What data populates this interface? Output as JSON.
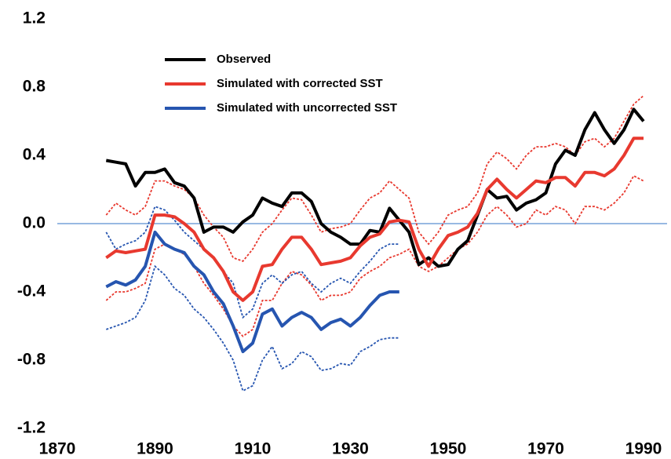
{
  "chart_data": {
    "type": "line",
    "x": [
      1880,
      1882,
      1884,
      1886,
      1888,
      1890,
      1892,
      1894,
      1896,
      1898,
      1900,
      1902,
      1904,
      1906,
      1908,
      1910,
      1912,
      1914,
      1916,
      1918,
      1920,
      1922,
      1924,
      1926,
      1928,
      1930,
      1932,
      1934,
      1936,
      1938,
      1940,
      1942,
      1944,
      1946,
      1948,
      1950,
      1952,
      1954,
      1956,
      1958,
      1960,
      1962,
      1964,
      1966,
      1968,
      1970,
      1972,
      1974,
      1976,
      1978,
      1980,
      1982,
      1984,
      1986,
      1988,
      1990
    ],
    "series": [
      {
        "name": "Observed",
        "color": "#000000",
        "values": [
          0.37,
          0.36,
          0.35,
          0.22,
          0.3,
          0.3,
          0.32,
          0.24,
          0.22,
          0.15,
          -0.05,
          -0.02,
          -0.02,
          -0.05,
          0.01,
          0.05,
          0.15,
          0.12,
          0.1,
          0.18,
          0.18,
          0.13,
          0.0,
          -0.05,
          -0.08,
          -0.12,
          -0.12,
          -0.04,
          -0.05,
          0.09,
          0.02,
          -0.05,
          -0.24,
          -0.2,
          -0.25,
          -0.24,
          -0.15,
          -0.1,
          0.05,
          0.2,
          0.15,
          0.16,
          0.08,
          0.12,
          0.14,
          0.18,
          0.35,
          0.43,
          0.4,
          0.55,
          0.65,
          0.55,
          0.47,
          0.55,
          0.67,
          0.6
        ]
      },
      {
        "name": "Simulated with corrected SST",
        "color": "#e8392f",
        "values": [
          -0.2,
          -0.16,
          -0.17,
          -0.16,
          -0.15,
          0.05,
          0.05,
          0.04,
          0.0,
          -0.05,
          -0.15,
          -0.2,
          -0.28,
          -0.4,
          -0.45,
          -0.4,
          -0.25,
          -0.24,
          -0.15,
          -0.08,
          -0.08,
          -0.15,
          -0.24,
          -0.23,
          -0.22,
          -0.2,
          -0.13,
          -0.08,
          -0.06,
          0.01,
          0.02,
          0.01,
          -0.15,
          -0.25,
          -0.15,
          -0.07,
          -0.05,
          -0.02,
          0.06,
          0.2,
          0.26,
          0.2,
          0.15,
          0.2,
          0.25,
          0.24,
          0.27,
          0.27,
          0.22,
          0.3,
          0.3,
          0.28,
          0.32,
          0.4,
          0.5,
          0.5
        ],
        "upper": [
          0.05,
          0.12,
          0.08,
          0.05,
          0.1,
          0.25,
          0.25,
          0.22,
          0.2,
          0.15,
          0.05,
          -0.02,
          -0.08,
          -0.2,
          -0.22,
          -0.15,
          -0.05,
          0.0,
          0.08,
          0.15,
          0.14,
          0.05,
          -0.05,
          -0.03,
          -0.02,
          0.0,
          0.08,
          0.15,
          0.18,
          0.25,
          0.2,
          0.15,
          -0.05,
          -0.12,
          -0.05,
          0.05,
          0.08,
          0.1,
          0.18,
          0.35,
          0.42,
          0.38,
          0.32,
          0.4,
          0.45,
          0.45,
          0.47,
          0.45,
          0.4,
          0.48,
          0.5,
          0.45,
          0.5,
          0.6,
          0.7,
          0.75
        ],
        "lower": [
          -0.45,
          -0.4,
          -0.4,
          -0.38,
          -0.35,
          -0.15,
          -0.12,
          -0.15,
          -0.18,
          -0.25,
          -0.35,
          -0.42,
          -0.5,
          -0.6,
          -0.66,
          -0.62,
          -0.45,
          -0.45,
          -0.35,
          -0.28,
          -0.3,
          -0.36,
          -0.45,
          -0.42,
          -0.42,
          -0.4,
          -0.32,
          -0.28,
          -0.25,
          -0.2,
          -0.18,
          -0.15,
          -0.25,
          -0.28,
          -0.25,
          -0.2,
          -0.15,
          -0.12,
          -0.05,
          0.05,
          0.1,
          0.05,
          -0.02,
          0.0,
          0.08,
          0.05,
          0.1,
          0.08,
          0.0,
          0.1,
          0.1,
          0.08,
          0.12,
          0.18,
          0.28,
          0.25
        ]
      },
      {
        "name": "Simulated with uncorrected SST",
        "color": "#2655b0",
        "values": [
          -0.37,
          -0.34,
          -0.36,
          -0.33,
          -0.25,
          -0.05,
          -0.12,
          -0.15,
          -0.17,
          -0.25,
          -0.3,
          -0.4,
          -0.47,
          -0.6,
          -0.75,
          -0.7,
          -0.53,
          -0.5,
          -0.6,
          -0.55,
          -0.52,
          -0.55,
          -0.62,
          -0.58,
          -0.56,
          -0.6,
          -0.55,
          -0.48,
          -0.42,
          -0.4,
          -0.4,
          null,
          null,
          null,
          null,
          null,
          null,
          null,
          null,
          null,
          null,
          null,
          null,
          null,
          null,
          null,
          null,
          null,
          null,
          null,
          null,
          null,
          null,
          null,
          null,
          null
        ],
        "upper": [
          -0.05,
          -0.15,
          -0.12,
          -0.1,
          -0.05,
          0.1,
          0.08,
          0.02,
          -0.05,
          -0.1,
          -0.15,
          -0.2,
          -0.28,
          -0.35,
          -0.55,
          -0.5,
          -0.35,
          -0.3,
          -0.35,
          -0.3,
          -0.28,
          -0.35,
          -0.4,
          -0.35,
          -0.32,
          -0.35,
          -0.28,
          -0.22,
          -0.15,
          -0.12,
          -0.12,
          null,
          null,
          null,
          null,
          null,
          null,
          null,
          null,
          null,
          null,
          null,
          null,
          null,
          null,
          null,
          null,
          null,
          null,
          null,
          null,
          null,
          null,
          null,
          null,
          null
        ],
        "lower": [
          -0.62,
          -0.6,
          -0.58,
          -0.55,
          -0.45,
          -0.25,
          -0.3,
          -0.38,
          -0.42,
          -0.5,
          -0.55,
          -0.62,
          -0.7,
          -0.8,
          -0.98,
          -0.95,
          -0.8,
          -0.72,
          -0.85,
          -0.82,
          -0.75,
          -0.78,
          -0.86,
          -0.85,
          -0.82,
          -0.83,
          -0.75,
          -0.72,
          -0.68,
          -0.67,
          -0.67,
          null,
          null,
          null,
          null,
          null,
          null,
          null,
          null,
          null,
          null,
          null,
          null,
          null,
          null,
          null,
          null,
          null,
          null,
          null,
          null,
          null,
          null,
          null,
          null,
          null
        ]
      }
    ],
    "xlim": [
      1870,
      1990
    ],
    "xticks": [
      1870,
      1890,
      1910,
      1930,
      1950,
      1970,
      1990
    ],
    "ylim": [
      -1.2,
      1.2
    ],
    "yticks": [
      {
        "value": -1.2,
        "label": "-1.2"
      },
      {
        "value": -0.8,
        "label": "-0.8"
      },
      {
        "value": -0.4,
        "label": "-0.4"
      },
      {
        "value": 0,
        "label": "0.0"
      },
      {
        "value": 0.4,
        "label": "0.4"
      },
      {
        "value": 0.8,
        "label": "0.8"
      },
      {
        "value": 1.2,
        "label": "1.2"
      }
    ],
    "zero_line_color": "#5b8fd0",
    "grid": false
  }
}
